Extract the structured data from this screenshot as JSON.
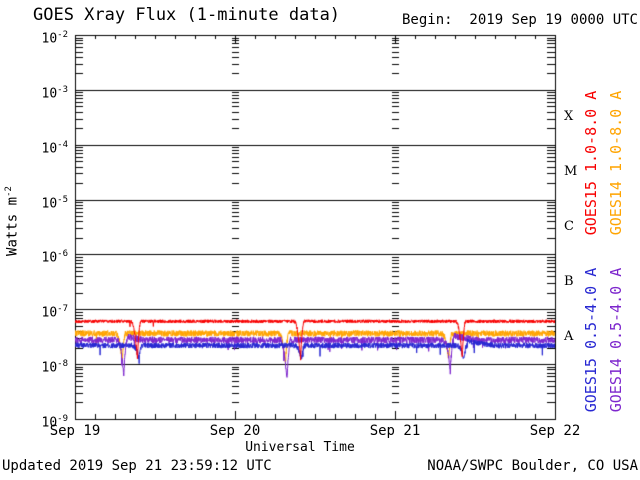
{
  "header": {
    "begin_label": "Begin:  2019 Sep 19 0000 UTC"
  },
  "footer": {
    "updated_label": "Updated 2019 Sep 21 23:59:12 UTC",
    "credit_label": "NOAA/SWPC Boulder, CO USA"
  },
  "chart_data": {
    "type": "line",
    "title": "GOES Xray Flux (1-minute data)",
    "x_axis": {
      "label": "Universal Time",
      "tick_labels": [
        "Sep 19",
        "Sep 20",
        "Sep 21",
        "Sep 22"
      ],
      "span_days": 3,
      "minor_ticks_per_day": 8
    },
    "y_axis": {
      "scale": "log",
      "tick_base": "10",
      "decade_exponents": [
        -2,
        -3,
        -4,
        -5,
        -6,
        -7,
        -8,
        -9
      ],
      "title_text": "Watts m",
      "title_exponent": "-2"
    },
    "flare_classes": [
      {
        "label": "X",
        "log_center": -3.5
      },
      {
        "label": "M",
        "log_center": -4.5
      },
      {
        "label": "C",
        "log_center": -5.5
      },
      {
        "label": "B",
        "log_center": -6.5
      },
      {
        "label": "A",
        "log_center": -7.5
      }
    ],
    "series": [
      {
        "name": "GOES15 1.0-8.0 A",
        "color": "#f80000",
        "base_log_flux": -7.22,
        "approx_avg_flux_watts_m2": 6e-08,
        "noise_log": 0.03,
        "spike_rate": 0.001,
        "eclipses": [
          {
            "center_day": 0.39,
            "min_log_flux": -7.9
          },
          {
            "center_day": 1.41,
            "min_log_flux": -7.9
          },
          {
            "center_day": 2.42,
            "min_log_flux": -7.88
          }
        ]
      },
      {
        "name": "GOES14 1.0-8.0 A",
        "color": "#ffa400",
        "base_log_flux": -7.44,
        "approx_avg_flux_watts_m2": 3.6e-08,
        "noise_log": 0.055,
        "spike_rate": 0.003,
        "eclipses": [
          {
            "center_day": 0.295,
            "min_log_flux": -7.95
          },
          {
            "center_day": 1.315,
            "min_log_flux": -8.0
          },
          {
            "center_day": 2.335,
            "min_log_flux": -7.9
          }
        ]
      },
      {
        "name": "GOES15 0.5-4.0 A",
        "color": "#2727d2",
        "base_log_flux": -7.66,
        "approx_avg_flux_watts_m2": 2.2e-08,
        "noise_log": 0.05,
        "spike_rate": 0.005,
        "eclipses": [
          {
            "center_day": 0.4,
            "min_log_flux": -7.9
          },
          {
            "center_day": 1.415,
            "min_log_flux": -7.92
          },
          {
            "center_day": 2.43,
            "min_log_flux": -7.9,
            "rebound_log": 0.07,
            "rebound_days": 0.18
          }
        ]
      },
      {
        "name": "GOES14 0.5-4.0 A",
        "color": "#7d26cd",
        "base_log_flux": -7.56,
        "approx_avg_flux_watts_m2": 2.8e-08,
        "noise_log": 0.06,
        "spike_rate": 0.005,
        "eclipses": [
          {
            "center_day": 0.305,
            "min_log_flux": -8.2,
            "rebound_log": 0.06,
            "rebound_days": 0.1
          },
          {
            "center_day": 1.325,
            "min_log_flux": -8.3
          },
          {
            "center_day": 2.345,
            "min_log_flux": -8.15,
            "rebound_log": 0.07,
            "rebound_days": 0.15
          }
        ]
      }
    ],
    "legend": {
      "entries": [
        {
          "series_index": 0,
          "column": 0,
          "group": "top"
        },
        {
          "series_index": 1,
          "column": 1,
          "group": "top"
        },
        {
          "series_index": 2,
          "column": 0,
          "group": "bottom"
        },
        {
          "series_index": 3,
          "column": 1,
          "group": "bottom"
        }
      ]
    }
  }
}
